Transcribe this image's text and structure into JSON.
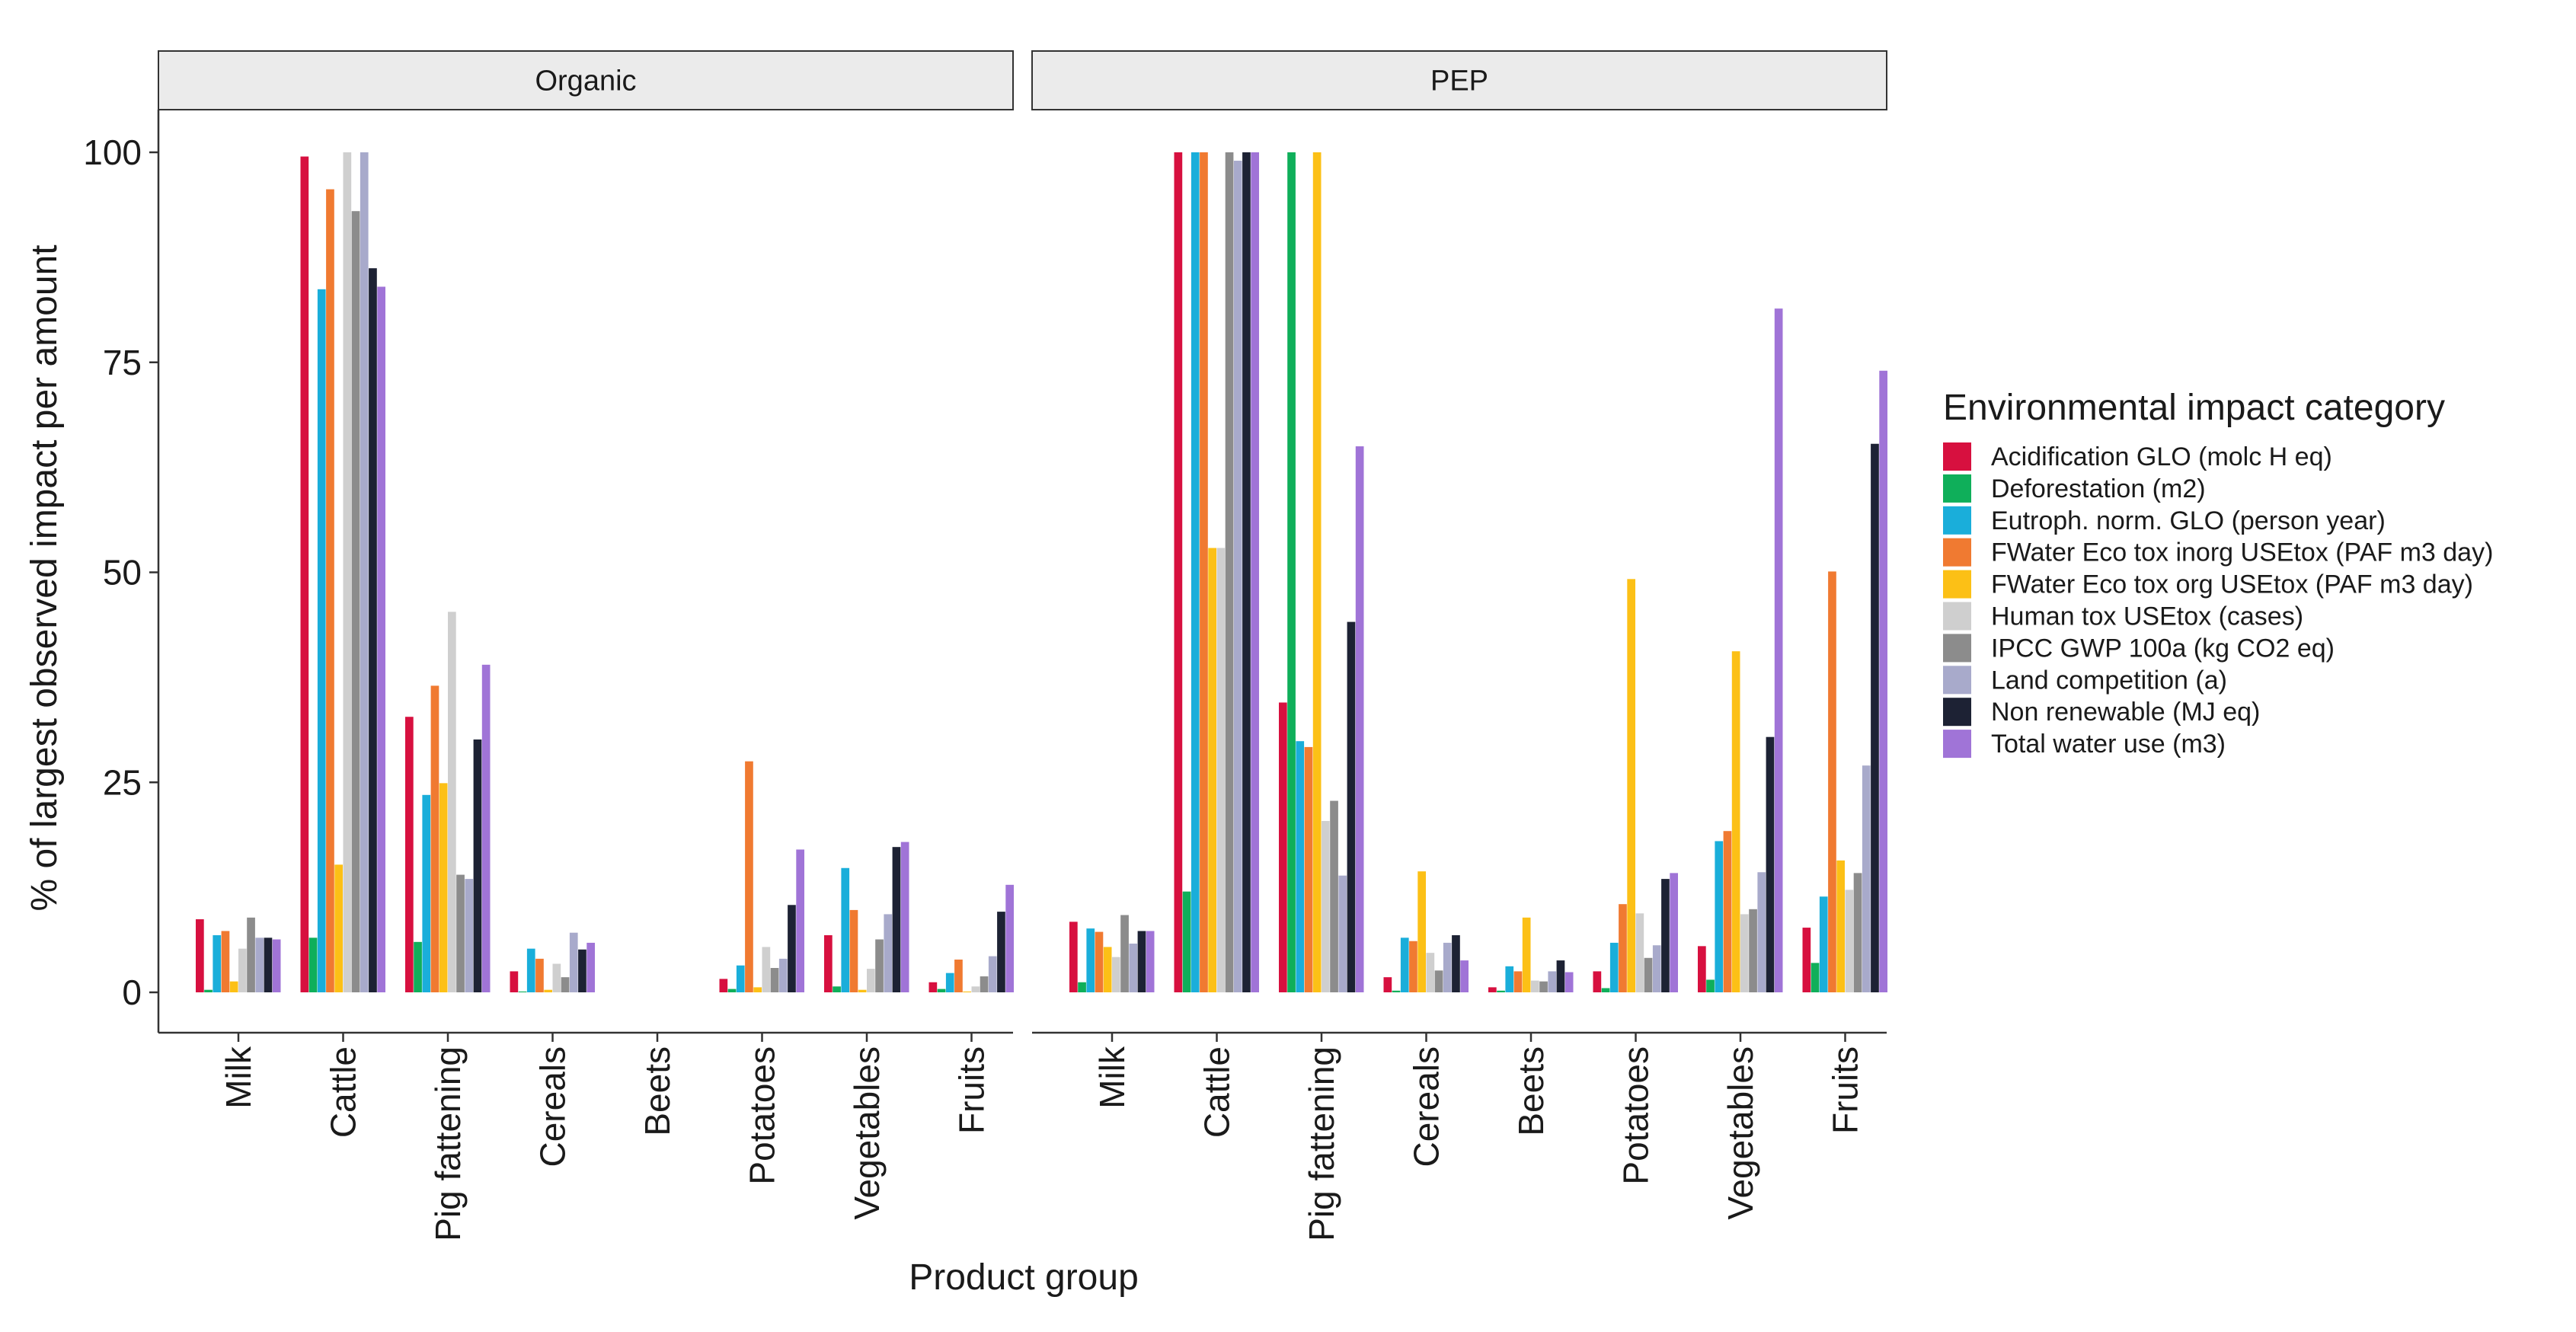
{
  "chart_data": {
    "type": "bar",
    "xlabel": "Product group",
    "ylabel": "% of largest observed impact per amount",
    "ylim": [
      0,
      105
    ],
    "yticks": [
      0,
      25,
      50,
      75,
      100
    ],
    "grid": false,
    "legend_position": "right",
    "legend_title": "Environmental impact category",
    "categories": [
      "Milk",
      "Cattle",
      "Pig fattening",
      "Cereals",
      "Beets",
      "Potatoes",
      "Vegetables",
      "Fruits"
    ],
    "series_names": [
      "Acidification GLO (molc H eq)",
      "Deforestation (m2)",
      "Eutroph. norm. GLO  (person year)",
      "FWater Eco tox inorg USEtox (PAF m3 day)",
      "FWater Eco tox org USEtox (PAF m3 day)",
      "Human tox USEtox  (cases)",
      "IPCC GWP 100a (kg CO2 eq)",
      "Land competition (a)",
      "Non renewable (MJ eq)",
      "Total water use (m3)"
    ],
    "colors": [
      "#D7103F",
      "#0FAF5A",
      "#1AAEDA",
      "#F07A31",
      "#FCC016",
      "#CFCFCF",
      "#8C8C8C",
      "#A8AACB",
      "#1D2234",
      "#A074D7"
    ],
    "panels": [
      {
        "name": "Organic",
        "values": [
          [
            8.7,
            0.3,
            6.8,
            7.3,
            1.3,
            5.2,
            8.9,
            6.5,
            6.5,
            6.3
          ],
          [
            99.5,
            6.5,
            83.7,
            95.6,
            15.2,
            100,
            93,
            100,
            86.2,
            84
          ],
          [
            32.8,
            6,
            23.5,
            36.5,
            24.9,
            45.3,
            14,
            13.5,
            30.1,
            39
          ],
          [
            2.5,
            0.1,
            5.2,
            4,
            0.3,
            3.4,
            1.8,
            7.1,
            5.1,
            5.9
          ],
          [
            0,
            0,
            0,
            0,
            0,
            0,
            0,
            0,
            0,
            0
          ],
          [
            1.6,
            0.4,
            3.2,
            27.5,
            0.6,
            5.4,
            2.9,
            4,
            10.4,
            17
          ],
          [
            6.8,
            0.7,
            14.8,
            9.8,
            0.3,
            2.8,
            6.3,
            9.3,
            17.3,
            17.9
          ],
          [
            1.2,
            0.4,
            2.3,
            3.9,
            0.1,
            0.7,
            1.9,
            4.3,
            9.6,
            12.8
          ]
        ]
      },
      {
        "name": "PEP",
        "values": [
          [
            8.4,
            1.2,
            7.6,
            7.2,
            5.4,
            4.2,
            9.2,
            5.8,
            7.3,
            7.3
          ],
          [
            100,
            12,
            100,
            100,
            52.9,
            52.9,
            100,
            99,
            100,
            100
          ],
          [
            34.5,
            100,
            29.9,
            29.2,
            100,
            20.4,
            22.8,
            13.9,
            44.1,
            65
          ],
          [
            1.8,
            0.2,
            6.5,
            6.1,
            14.4,
            4.7,
            2.6,
            5.9,
            6.8,
            3.8
          ],
          [
            0.6,
            0.2,
            3.1,
            2.5,
            8.9,
            1.4,
            1.3,
            2.5,
            3.8,
            2.4
          ],
          [
            2.5,
            0.5,
            5.9,
            10.5,
            49.2,
            9.4,
            4.1,
            5.6,
            13.5,
            14.2
          ],
          [
            5.5,
            1.5,
            18,
            19.2,
            40.6,
            9.3,
            9.9,
            14.3,
            30.4,
            81.4
          ],
          [
            7.7,
            3.5,
            11.4,
            50.1,
            15.7,
            12.2,
            14.2,
            27,
            65.3,
            74
          ]
        ]
      }
    ]
  }
}
